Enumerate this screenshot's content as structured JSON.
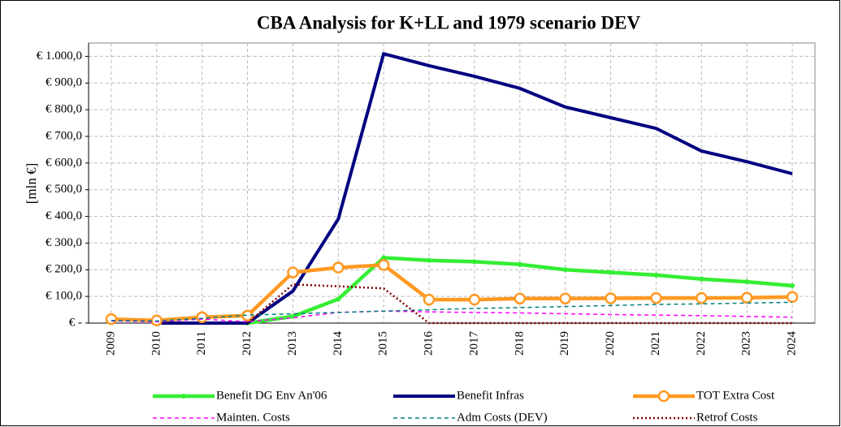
{
  "chart_data": {
    "type": "line",
    "title": "CBA Analysis for K+LL and 1979 scenario DEV",
    "y_label": "[mln €]",
    "categories": [
      "2009",
      "2010",
      "2011",
      "2012",
      "2013",
      "2014",
      "2015",
      "2016",
      "2017",
      "2018",
      "2019",
      "2020",
      "2021",
      "2022",
      "2023",
      "2024"
    ],
    "series": [
      {
        "name": "Benefit DG Env An'06",
        "color": "#33ee33",
        "line_style": "solid",
        "marker": "small-circle",
        "values": [
          null,
          null,
          null,
          0,
          25,
          90,
          245,
          235,
          230,
          220,
          200,
          190,
          180,
          165,
          155,
          140
        ]
      },
      {
        "name": "Benefit Infras",
        "color": "#000080",
        "line_style": "solid",
        "marker": "none",
        "values": [
          null,
          0,
          0,
          0,
          120,
          390,
          1010,
          965,
          925,
          880,
          810,
          770,
          730,
          645,
          605,
          560
        ]
      },
      {
        "name": "TOT Extra Cost",
        "color": "#ff9922",
        "line_style": "solid",
        "marker": "open-circle",
        "values": [
          15,
          10,
          22,
          28,
          190,
          208,
          218,
          88,
          88,
          92,
          92,
          93,
          94,
          94,
          95,
          98
        ]
      },
      {
        "name": "Mainten. Costs",
        "color": "#ff00ff",
        "line_style": "dashed",
        "marker": "none",
        "values": [
          8,
          5,
          15,
          5,
          20,
          40,
          45,
          42,
          40,
          38,
          35,
          32,
          30,
          28,
          25,
          22
        ]
      },
      {
        "name": "Adm Costs (DEV)",
        "color": "#008080",
        "line_style": "dashed",
        "marker": "none",
        "values": [
          10,
          8,
          18,
          30,
          35,
          40,
          45,
          50,
          55,
          58,
          62,
          66,
          70,
          72,
          75,
          78
        ]
      },
      {
        "name": "Retrof Costs",
        "color": "#800000",
        "line_style": "dotted",
        "marker": "none",
        "values": [
          null,
          null,
          null,
          0,
          145,
          138,
          130,
          0,
          0,
          0,
          0,
          0,
          0,
          0,
          0,
          0
        ]
      }
    ],
    "ylim": [
      0,
      1050
    ],
    "yticks": [
      {
        "value": 0,
        "label": "€ -"
      },
      {
        "value": 100,
        "label": "€ 100,0"
      },
      {
        "value": 200,
        "label": "€ 200,0"
      },
      {
        "value": 300,
        "label": "€ 300,0"
      },
      {
        "value": 400,
        "label": "€ 400,0"
      },
      {
        "value": 500,
        "label": "€ 500,0"
      },
      {
        "value": 600,
        "label": "€ 600,0"
      },
      {
        "value": 700,
        "label": "€ 700,0"
      },
      {
        "value": 800,
        "label": "€ 800,0"
      },
      {
        "value": 900,
        "label": "€ 900,0"
      },
      {
        "value": 1000,
        "label": "€ 1.000,0"
      }
    ],
    "grid": true,
    "legend": "bottom"
  }
}
